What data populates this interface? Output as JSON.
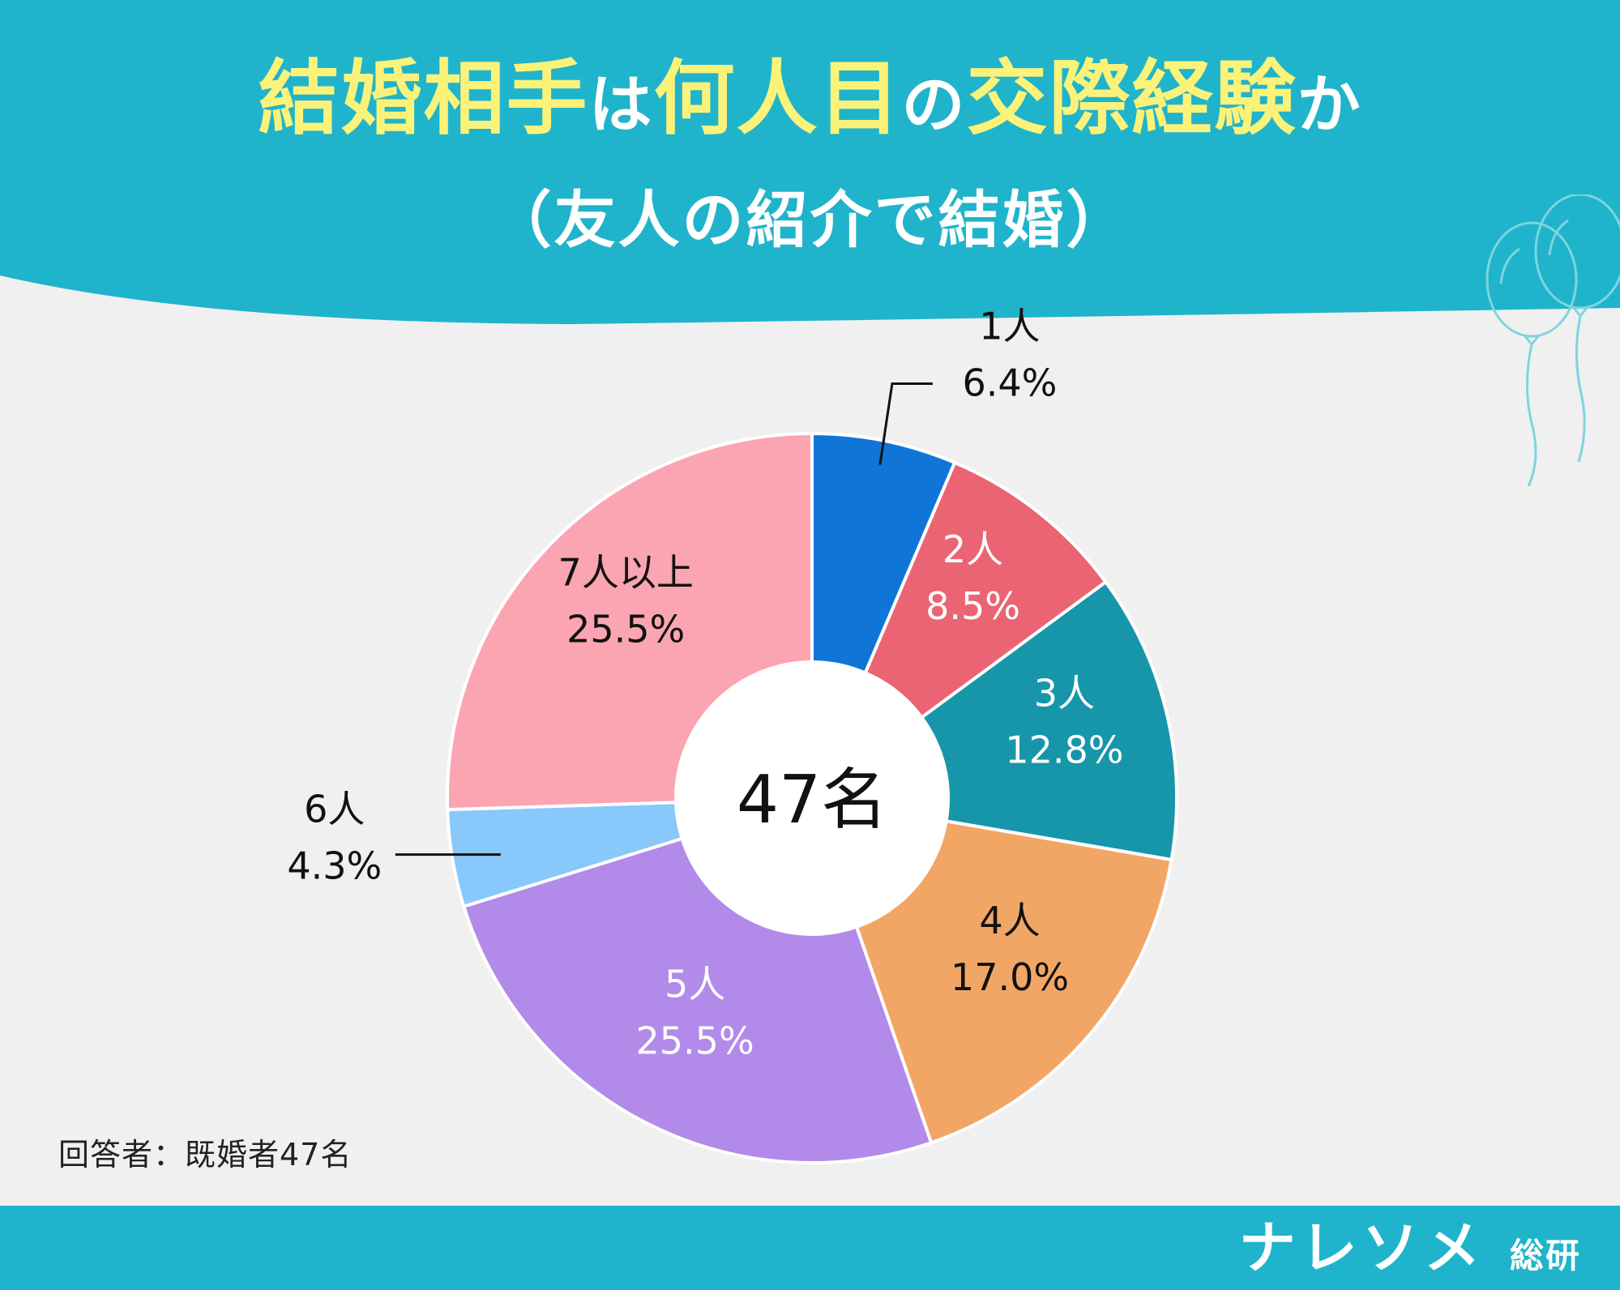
{
  "header": {
    "title_parts": [
      "結婚相手",
      "は",
      "何人目",
      "の",
      "交際経験",
      "か"
    ],
    "subtitle": "（友人の紹介で結婚）"
  },
  "colors": {
    "header": "#1fb4cb",
    "background": "#f0f0f0",
    "title_highlight": "#fbf27a"
  },
  "chart_data": {
    "type": "pie",
    "style": "donut",
    "center_label": "47名",
    "slices": [
      {
        "label": "1人",
        "value": 6.4,
        "value_label": "6.4%",
        "color": "#0f76d8",
        "label_color": "#111111",
        "callout": true
      },
      {
        "label": "2人",
        "value": 8.5,
        "value_label": "8.5%",
        "color": "#ea6474",
        "label_color": "#ffffff",
        "callout": false
      },
      {
        "label": "3人",
        "value": 12.8,
        "value_label": "12.8%",
        "color": "#1796aa",
        "label_color": "#ffffff",
        "callout": false
      },
      {
        "label": "4人",
        "value": 17.0,
        "value_label": "17.0%",
        "color": "#f2a665",
        "label_color": "#111111",
        "callout": false
      },
      {
        "label": "5人",
        "value": 25.5,
        "value_label": "25.5%",
        "color": "#b18aea",
        "label_color": "#ffffff",
        "callout": false
      },
      {
        "label": "6人",
        "value": 4.3,
        "value_label": "4.3%",
        "color": "#88c8fb",
        "label_color": "#111111",
        "callout": true
      },
      {
        "label": "7人以上",
        "value": 25.5,
        "value_label": "25.5%",
        "color": "#fba5b2",
        "label_color": "#111111",
        "callout": false
      }
    ]
  },
  "footnote": "回答者：既婚者47名",
  "brand": {
    "name": "ナレソメ",
    "suffix": "総研"
  }
}
